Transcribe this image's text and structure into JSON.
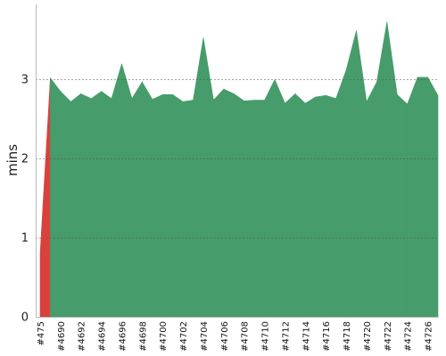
{
  "chart_data": {
    "type": "area",
    "ylabel": "mins",
    "xlabel": "",
    "ylim": [
      0,
      3.95
    ],
    "yticks": [
      0,
      1,
      2,
      3
    ],
    "grid": "horizontal dashed at y ticks",
    "x_tick_labels": [
      "#475",
      "#4690",
      "#4692",
      "#4694",
      "#4696",
      "#4698",
      "#4700",
      "#4702",
      "#4704",
      "#4706",
      "#4708",
      "#4710",
      "#4712",
      "#4714",
      "#4716",
      "#4718",
      "#4720",
      "#4722",
      "#4724",
      "#4726"
    ],
    "colors": {
      "success": "#469c6b",
      "failure": "#d9413c"
    },
    "series": [
      {
        "x": [
          "#475",
          "#4689",
          "#4690",
          "#4691",
          "#4692",
          "#4693",
          "#4694",
          "#4695",
          "#4696",
          "#4697",
          "#4698",
          "#4699",
          "#4700",
          "#4701",
          "#4702",
          "#4703",
          "#4704",
          "#4705",
          "#4706",
          "#4707",
          "#4708",
          "#4709",
          "#4710",
          "#4711",
          "#4712",
          "#4713",
          "#4714",
          "#4715",
          "#4716",
          "#4717",
          "#4718",
          "#4719",
          "#4720",
          "#4721",
          "#4722",
          "#4723",
          "#4724",
          "#4725",
          "#4726",
          "#4727"
        ],
        "values": [
          0.8,
          3.02,
          2.85,
          2.72,
          2.82,
          2.76,
          2.85,
          2.76,
          3.2,
          2.76,
          2.97,
          2.75,
          2.81,
          2.81,
          2.72,
          2.74,
          3.53,
          2.74,
          2.88,
          2.82,
          2.73,
          2.74,
          2.74,
          3.0,
          2.7,
          2.82,
          2.7,
          2.78,
          2.8,
          2.76,
          3.12,
          3.62,
          2.72,
          2.97,
          3.73,
          2.81,
          2.69,
          3.03,
          3.03,
          2.8
        ],
        "status": [
          "failure",
          "success",
          "success",
          "success",
          "success",
          "success",
          "success",
          "success",
          "success",
          "success",
          "success",
          "success",
          "success",
          "success",
          "success",
          "success",
          "success",
          "success",
          "success",
          "success",
          "success",
          "success",
          "success",
          "success",
          "success",
          "success",
          "success",
          "success",
          "success",
          "success",
          "success",
          "success",
          "success",
          "success",
          "success",
          "success",
          "success",
          "success",
          "success",
          "success"
        ]
      }
    ]
  }
}
